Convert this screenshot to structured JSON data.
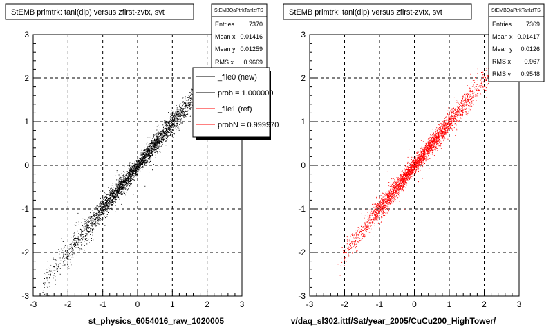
{
  "chart_data": [
    {
      "type": "scatter",
      "title": "StEMB primtrk: tanl(dip) versus zfirst-zvtx, svt",
      "xlim": [
        -3,
        3
      ],
      "ylim": [
        -3,
        3
      ],
      "xticks": [
        "-3",
        "-2",
        "-1",
        "0",
        "1",
        "2",
        "3"
      ],
      "yticks": [
        "-3",
        "-2",
        "-1",
        "0",
        "1",
        "2",
        "3"
      ],
      "grid": true,
      "color": "#000000",
      "xlabel": "st_physics_6054016_raw_1020005",
      "stats": {
        "name": "StEMBQaPtrkTanlzfTS",
        "rows": [
          {
            "label": "Entries",
            "value": "7370"
          },
          {
            "label": "Mean x",
            "value": "0.01416"
          },
          {
            "label": "Mean y",
            "value": "0.01259"
          },
          {
            "label": "RMS x",
            "value": "0.9669"
          }
        ]
      },
      "legend": {
        "entries": [
          {
            "label": "_file0 (new)",
            "color": "#000000"
          },
          {
            "label": "prob = 1.000000",
            "color": "#000000"
          },
          {
            "label": "_file1 (ref)",
            "color": "#ff0000"
          },
          {
            "label": "probN = 0.999970",
            "color": "#ff0000"
          }
        ]
      },
      "distribution": {
        "slope": 0.985,
        "intercept": 0.0,
        "x_range": [
          -2.75,
          2.6
        ],
        "spread_y": 0.09,
        "points": 7370
      }
    },
    {
      "type": "scatter",
      "title": "StEMB primtrk: tanl(dip) versus zfirst-zvtx, svt",
      "xlim": [
        -3,
        3
      ],
      "ylim": [
        -3,
        3
      ],
      "xticks": [
        "-3",
        "-2",
        "-1",
        "0",
        "1",
        "2",
        "3"
      ],
      "yticks": [
        "-3",
        "-2",
        "-1",
        "0",
        "1",
        "2",
        "3"
      ],
      "grid": true,
      "color": "#ff0000",
      "xlabel": "v/daq_sl302.ittf/Sat/year_2005/CuCu200_HighTower/",
      "stats": {
        "name": "StEMBQaPtrkTanlzfTS",
        "rows": [
          {
            "label": "Entries",
            "value": "7369"
          },
          {
            "label": "Mean x",
            "value": "0.01417"
          },
          {
            "label": "Mean y",
            "value": "0.0126"
          },
          {
            "label": "RMS x",
            "value": "0.967"
          },
          {
            "label": "RMS y",
            "value": "0.9548"
          }
        ]
      },
      "distribution": {
        "slope": 0.985,
        "intercept": 0.0,
        "x_range": [
          -2.2,
          2.3
        ],
        "spread_y": 0.09,
        "points": 7369
      }
    }
  ]
}
